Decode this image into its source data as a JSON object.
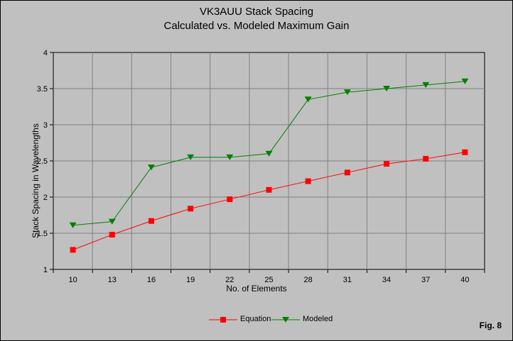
{
  "chart_data": {
    "type": "line",
    "title": "VK3AUU Stack Spacing",
    "subtitle": "Calculated vs. Modeled Maximum Gain",
    "xlabel": "No. of Elements",
    "ylabel": "Stack Spacing in Wavelengths",
    "categories": [
      "10",
      "13",
      "16",
      "19",
      "22",
      "25",
      "28",
      "31",
      "34",
      "37",
      "40"
    ],
    "ylim": [
      1,
      4
    ],
    "yticks": [
      "1",
      "1.5",
      "2",
      "2.5",
      "3",
      "3.5",
      "4"
    ],
    "ytick_values": [
      1,
      1.5,
      2,
      2.5,
      3,
      3.5,
      4
    ],
    "grid": true,
    "legend_position": "bottom-center",
    "series": [
      {
        "name": "Equation",
        "color": "#ff0000",
        "marker": "square",
        "values": [
          1.27,
          1.48,
          1.67,
          1.84,
          1.97,
          2.1,
          2.22,
          2.34,
          2.46,
          2.53,
          2.62
        ]
      },
      {
        "name": "Modeled",
        "color": "#008000",
        "marker": "triangle-down",
        "values": [
          1.61,
          1.66,
          2.41,
          2.55,
          2.55,
          2.6,
          3.35,
          3.45,
          3.5,
          3.55,
          3.6
        ]
      }
    ],
    "annotation": "Fig. 8"
  }
}
